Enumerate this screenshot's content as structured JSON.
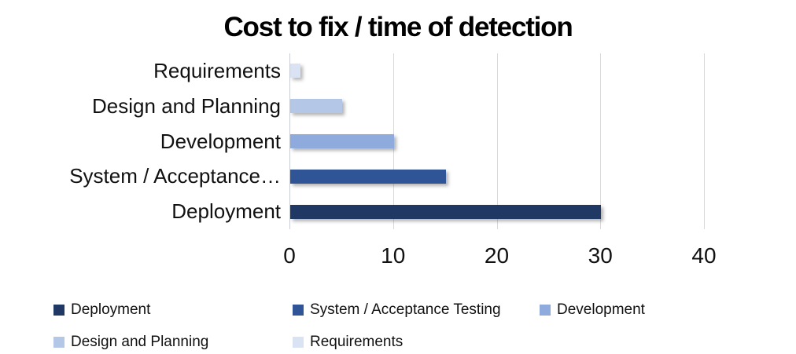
{
  "title": "Cost to fix / time of detection",
  "chart_data": {
    "type": "bar",
    "orientation": "horizontal",
    "title": "Cost to fix / time of detection",
    "categories": [
      "Requirements",
      "Design and Planning",
      "Development",
      "System / Acceptance Testing",
      "Deployment"
    ],
    "axis_category_labels": [
      "Requirements",
      "Design and Planning",
      "Development",
      "System / Acceptance…",
      "Deployment"
    ],
    "values": [
      1,
      5,
      10,
      15,
      30
    ],
    "bar_colors": [
      "#DAE3F3",
      "#B4C7E7",
      "#8FAADC",
      "#2F5597",
      "#1F3864"
    ],
    "xlim": [
      0,
      40
    ],
    "xticks": [
      "0",
      "10",
      "20",
      "30",
      "40"
    ],
    "xtick_values": [
      0,
      10,
      20,
      30,
      40
    ],
    "grid": "vertical-major",
    "gridline_color": "#D9D9D9",
    "background_color": "#FFFFFF",
    "legend_position": "bottom",
    "legend": [
      {
        "label": "Deployment",
        "color": "#1F3864"
      },
      {
        "label": "System / Acceptance Testing",
        "color": "#2F5597"
      },
      {
        "label": "Development",
        "color": "#8FAADC"
      },
      {
        "label": "Design and Planning",
        "color": "#B4C7E7"
      },
      {
        "label": "Requirements",
        "color": "#DAE3F3"
      }
    ]
  }
}
